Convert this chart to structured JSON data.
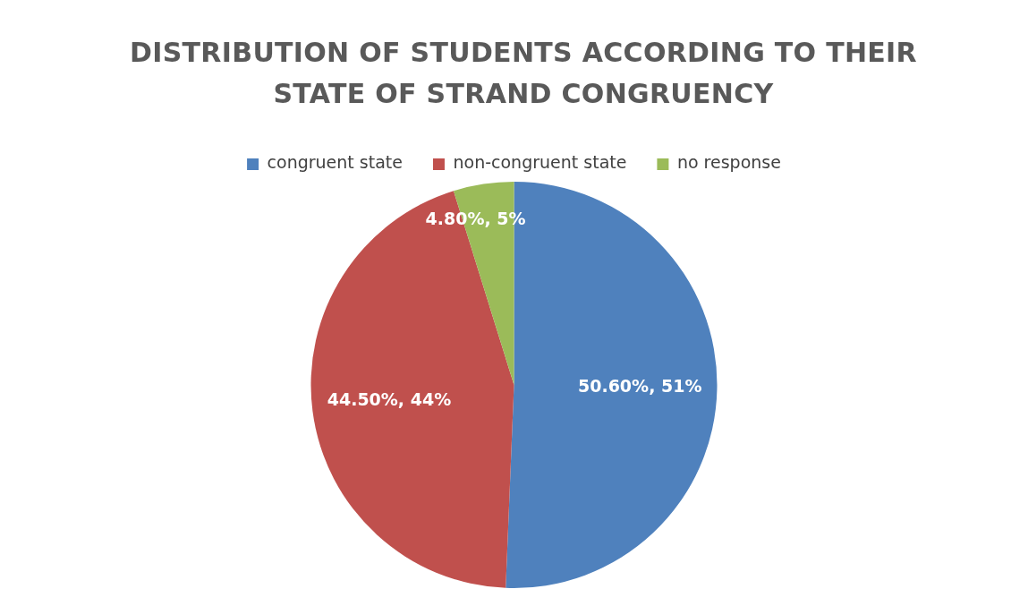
{
  "chart_data": {
    "type": "pie",
    "title": "DISTRIBUTION OF STUDENTS ACCORDING TO THEIR STATE OF STRAND CONGRUENCY",
    "categories": [
      "congruent state",
      "non-congruent state",
      "no response"
    ],
    "values": [
      50.6,
      44.5,
      4.8
    ],
    "colors": [
      "#4f81bd",
      "#c0504d",
      "#9bbb59"
    ],
    "value_labels": [
      "50.60%, 51%",
      "44.50%, 44%",
      "4.80%, 5%"
    ],
    "legend": "top"
  }
}
